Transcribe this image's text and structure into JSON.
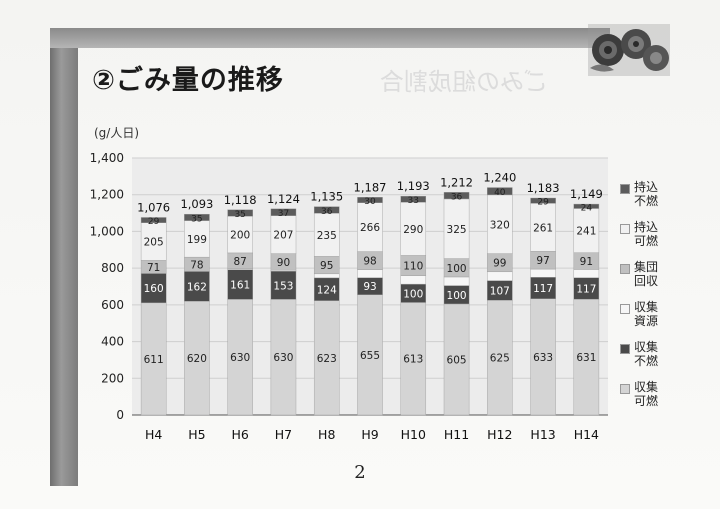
{
  "header": {
    "title": "②ごみ量の推移",
    "unit_label": "(g/人日)"
  },
  "page_number": "2",
  "colors": {
    "collect_burnable": "#d4d4d4",
    "collect_nonburnable": "#4a4a4a",
    "collect_resource": "#f6f6f6",
    "group_collection": "#c0c0c0",
    "bring_burnable": "#f1f1f1",
    "bring_nonburnable": "#5c5c5c"
  },
  "chart_data": {
    "type": "bar",
    "stacked": true,
    "categories": [
      "H4",
      "H5",
      "H6",
      "H7",
      "H8",
      "H9",
      "H10",
      "H11",
      "H12",
      "H13",
      "H14"
    ],
    "ylim": [
      0,
      1400
    ],
    "yticks": [
      "0",
      "200",
      "400",
      "600",
      "800",
      "1,000",
      "1,200",
      "1,400"
    ],
    "series": [
      {
        "name": "収集可燃",
        "values": [
          611,
          620,
          630,
          630,
          623,
          655,
          613,
          605,
          625,
          633,
          631
        ]
      },
      {
        "name": "収集不燃",
        "values": [
          160,
          162,
          161,
          153,
          124,
          93,
          100,
          100,
          107,
          117,
          117
        ]
      },
      {
        "name": "収集資源",
        "values": [
          0,
          0,
          5,
          6,
          22,
          44,
          46,
          47,
          48,
          45,
          45
        ]
      },
      {
        "name": "集団回収",
        "values": [
          71,
          78,
          87,
          90,
          95,
          98,
          110,
          100,
          99,
          97,
          91
        ]
      },
      {
        "name": "持込可燃",
        "values": [
          205,
          199,
          200,
          207,
          235,
          266,
          290,
          325,
          320,
          261,
          241
        ]
      },
      {
        "name": "持込不燃",
        "values": [
          29,
          35,
          35,
          37,
          36,
          30,
          33,
          36,
          40,
          29,
          24
        ]
      }
    ],
    "totals": [
      "1,076",
      "1,093",
      "1,118",
      "1,124",
      "1,135",
      "1,187",
      "1,193",
      "1,212",
      "1,240",
      "1,183",
      "1,149"
    ],
    "legend": [
      "持込\n不燃",
      "持込\n可燃",
      "集団\n回収",
      "収集\n資源",
      "収集\n不燃",
      "収集\n可燃"
    ]
  }
}
